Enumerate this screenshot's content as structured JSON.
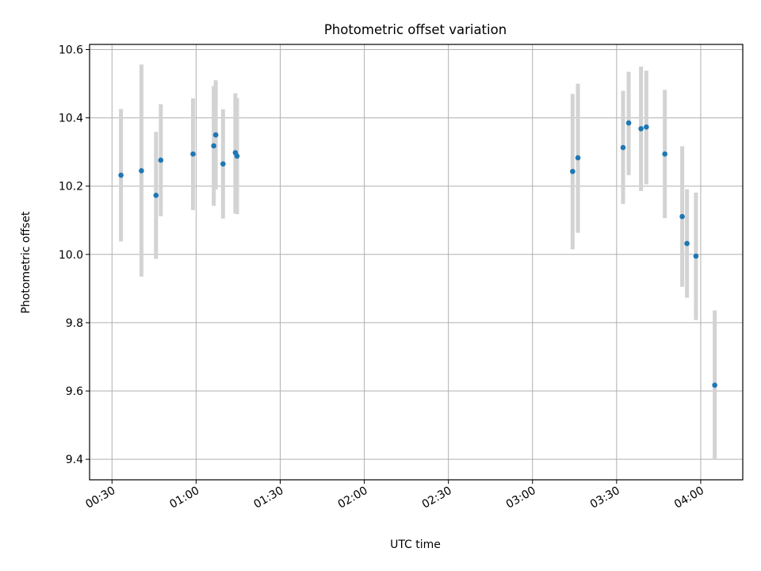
{
  "chart_data": {
    "type": "scatter",
    "title": "Photometric offset variation",
    "xlabel": "UTC time",
    "ylabel": "Photometric offset",
    "xlim": [
      "00:22",
      "04:15"
    ],
    "ylim": [
      9.34,
      10.615
    ],
    "grid": true,
    "x_ticks": [
      "00:30",
      "01:00",
      "01:30",
      "02:00",
      "02:30",
      "03:00",
      "03:30",
      "04:00"
    ],
    "y_ticks": [
      "9.4",
      "9.6",
      "9.8",
      "10.0",
      "10.2",
      "10.4",
      "10.6"
    ],
    "colors": {
      "point": "#1f77b4",
      "errorbar": "#d3d3d3",
      "grid": "#b0b0b0"
    },
    "series": [
      {
        "points": [
          {
            "t": "00:33:12",
            "y": 10.232,
            "lo": 10.038,
            "hi": 10.426
          },
          {
            "t": "00:40:30",
            "y": 10.245,
            "lo": 9.935,
            "hi": 10.556
          },
          {
            "t": "00:45:42",
            "y": 10.173,
            "lo": 9.987,
            "hi": 10.359
          },
          {
            "t": "00:47:24",
            "y": 10.276,
            "lo": 10.112,
            "hi": 10.44
          },
          {
            "t": "00:58:54",
            "y": 10.294,
            "lo": 10.13,
            "hi": 10.457
          },
          {
            "t": "01:06:18",
            "y": 10.318,
            "lo": 10.142,
            "hi": 10.493
          },
          {
            "t": "01:07:00",
            "y": 10.35,
            "lo": 10.19,
            "hi": 10.51
          },
          {
            "t": "01:09:36",
            "y": 10.265,
            "lo": 10.105,
            "hi": 10.425
          },
          {
            "t": "01:14:00",
            "y": 10.298,
            "lo": 10.12,
            "hi": 10.472
          },
          {
            "t": "01:14:36",
            "y": 10.288,
            "lo": 10.118,
            "hi": 10.458
          },
          {
            "t": "03:14:18",
            "y": 10.243,
            "lo": 10.015,
            "hi": 10.47
          },
          {
            "t": "03:16:12",
            "y": 10.283,
            "lo": 10.063,
            "hi": 10.5
          },
          {
            "t": "03:32:18",
            "y": 10.313,
            "lo": 10.148,
            "hi": 10.479
          },
          {
            "t": "03:34:18",
            "y": 10.385,
            "lo": 10.232,
            "hi": 10.535
          },
          {
            "t": "03:38:42",
            "y": 10.368,
            "lo": 10.186,
            "hi": 10.55
          },
          {
            "t": "03:40:36",
            "y": 10.373,
            "lo": 10.205,
            "hi": 10.538
          },
          {
            "t": "03:47:12",
            "y": 10.294,
            "lo": 10.106,
            "hi": 10.482
          },
          {
            "t": "03:53:24",
            "y": 10.111,
            "lo": 9.905,
            "hi": 10.317
          },
          {
            "t": "03:55:06",
            "y": 10.032,
            "lo": 9.873,
            "hi": 10.191
          },
          {
            "t": "03:58:18",
            "y": 9.995,
            "lo": 9.808,
            "hi": 10.181
          },
          {
            "t": "04:05:00",
            "y": 9.617,
            "lo": 9.398,
            "hi": 9.836
          }
        ]
      }
    ]
  }
}
